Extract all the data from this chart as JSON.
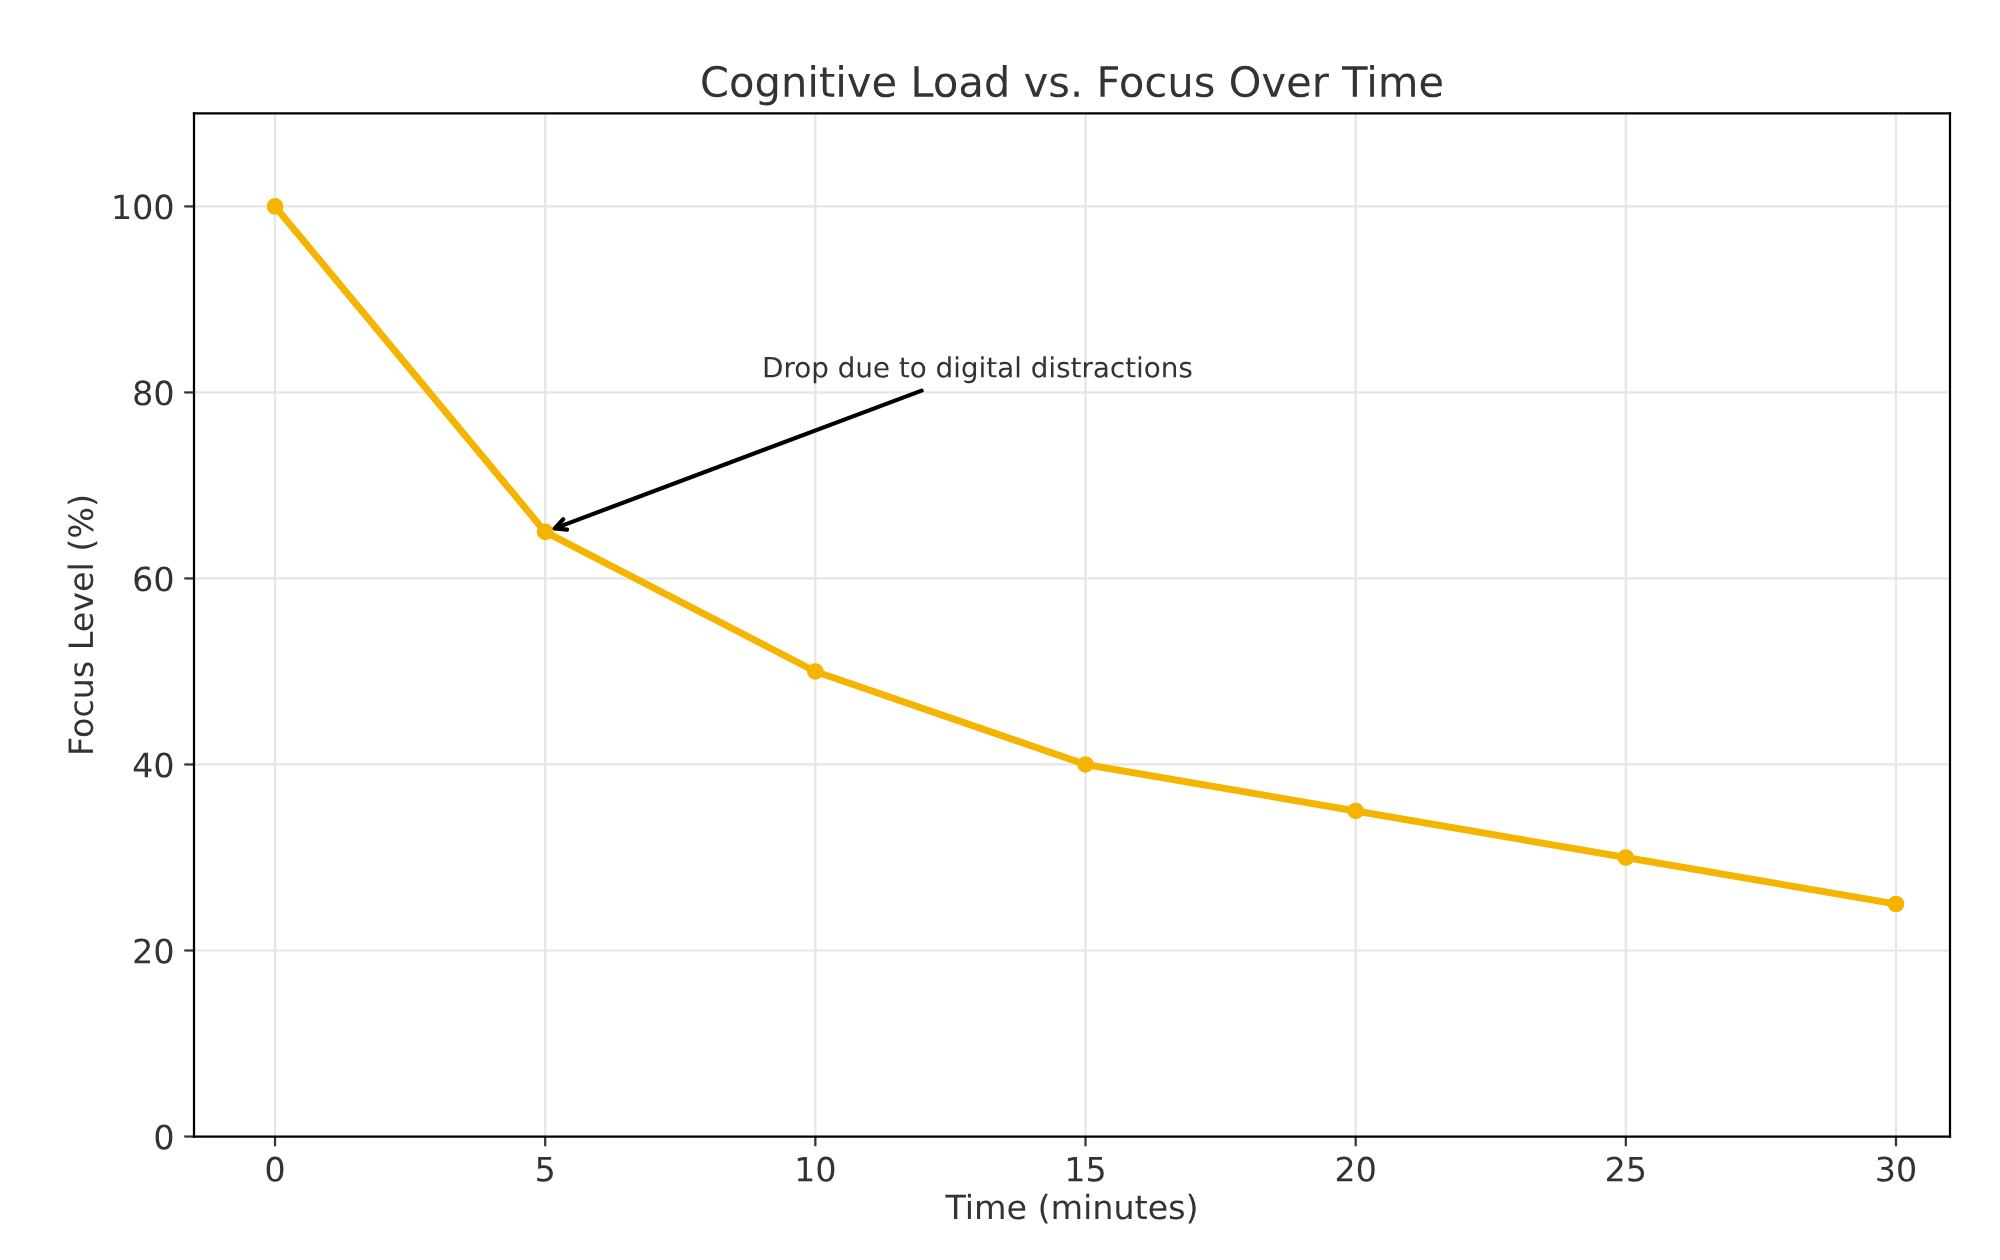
{
  "chart_data": {
    "type": "line",
    "title": "Cognitive Load vs. Focus Over Time",
    "xlabel": "Time (minutes)",
    "ylabel": "Focus Level (%)",
    "x": [
      0,
      5,
      10,
      15,
      20,
      25,
      30
    ],
    "series": [
      {
        "color": "#f5b400",
        "values": [
          100,
          65,
          50,
          40,
          35,
          30,
          25
        ]
      }
    ],
    "annotations": [
      {
        "text": "Drop due to digital distractions",
        "x": 5,
        "y": 65
      }
    ],
    "xlim": [
      -1.5,
      31
    ],
    "xticks": [
      0,
      5,
      10,
      15,
      20,
      25,
      30
    ],
    "ylim": [
      0,
      110
    ],
    "yticks": [
      0,
      20,
      40,
      60,
      80,
      100
    ],
    "grid": true,
    "marker": "circle",
    "line_style": "solid"
  }
}
